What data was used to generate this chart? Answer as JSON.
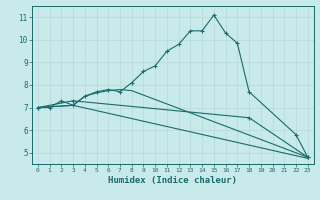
{
  "xlabel": "Humidex (Indice chaleur)",
  "bg_color": "#c8eaea",
  "line_color": "#1a6b6b",
  "grid_color": "#b8d8d8",
  "xlim": [
    -0.5,
    23.5
  ],
  "ylim": [
    4.5,
    11.5
  ],
  "xticks": [
    0,
    1,
    2,
    3,
    4,
    5,
    6,
    7,
    8,
    9,
    10,
    11,
    12,
    13,
    14,
    15,
    16,
    17,
    18,
    19,
    20,
    21,
    22,
    23
  ],
  "yticks": [
    5,
    6,
    7,
    8,
    9,
    10,
    11
  ],
  "line1_x": [
    0,
    1,
    2,
    3,
    4,
    5,
    6,
    7,
    8,
    9,
    10,
    11,
    12,
    13,
    14,
    15,
    16,
    17,
    18,
    22,
    23
  ],
  "line1_y": [
    7.0,
    7.0,
    7.3,
    7.1,
    7.5,
    7.7,
    7.8,
    7.7,
    8.1,
    8.6,
    8.85,
    9.5,
    9.8,
    10.4,
    10.4,
    11.1,
    10.3,
    9.85,
    7.7,
    5.8,
    4.8
  ],
  "line2_x": [
    0,
    3,
    4,
    5,
    6,
    7,
    8,
    23
  ],
  "line2_y": [
    7.0,
    7.1,
    7.5,
    7.65,
    7.75,
    7.8,
    7.75,
    4.8
  ],
  "line3_x": [
    0,
    3,
    23
  ],
  "line3_y": [
    7.0,
    7.1,
    4.75
  ],
  "line4_x": [
    0,
    3,
    18,
    23
  ],
  "line4_y": [
    7.0,
    7.3,
    6.55,
    4.8
  ]
}
